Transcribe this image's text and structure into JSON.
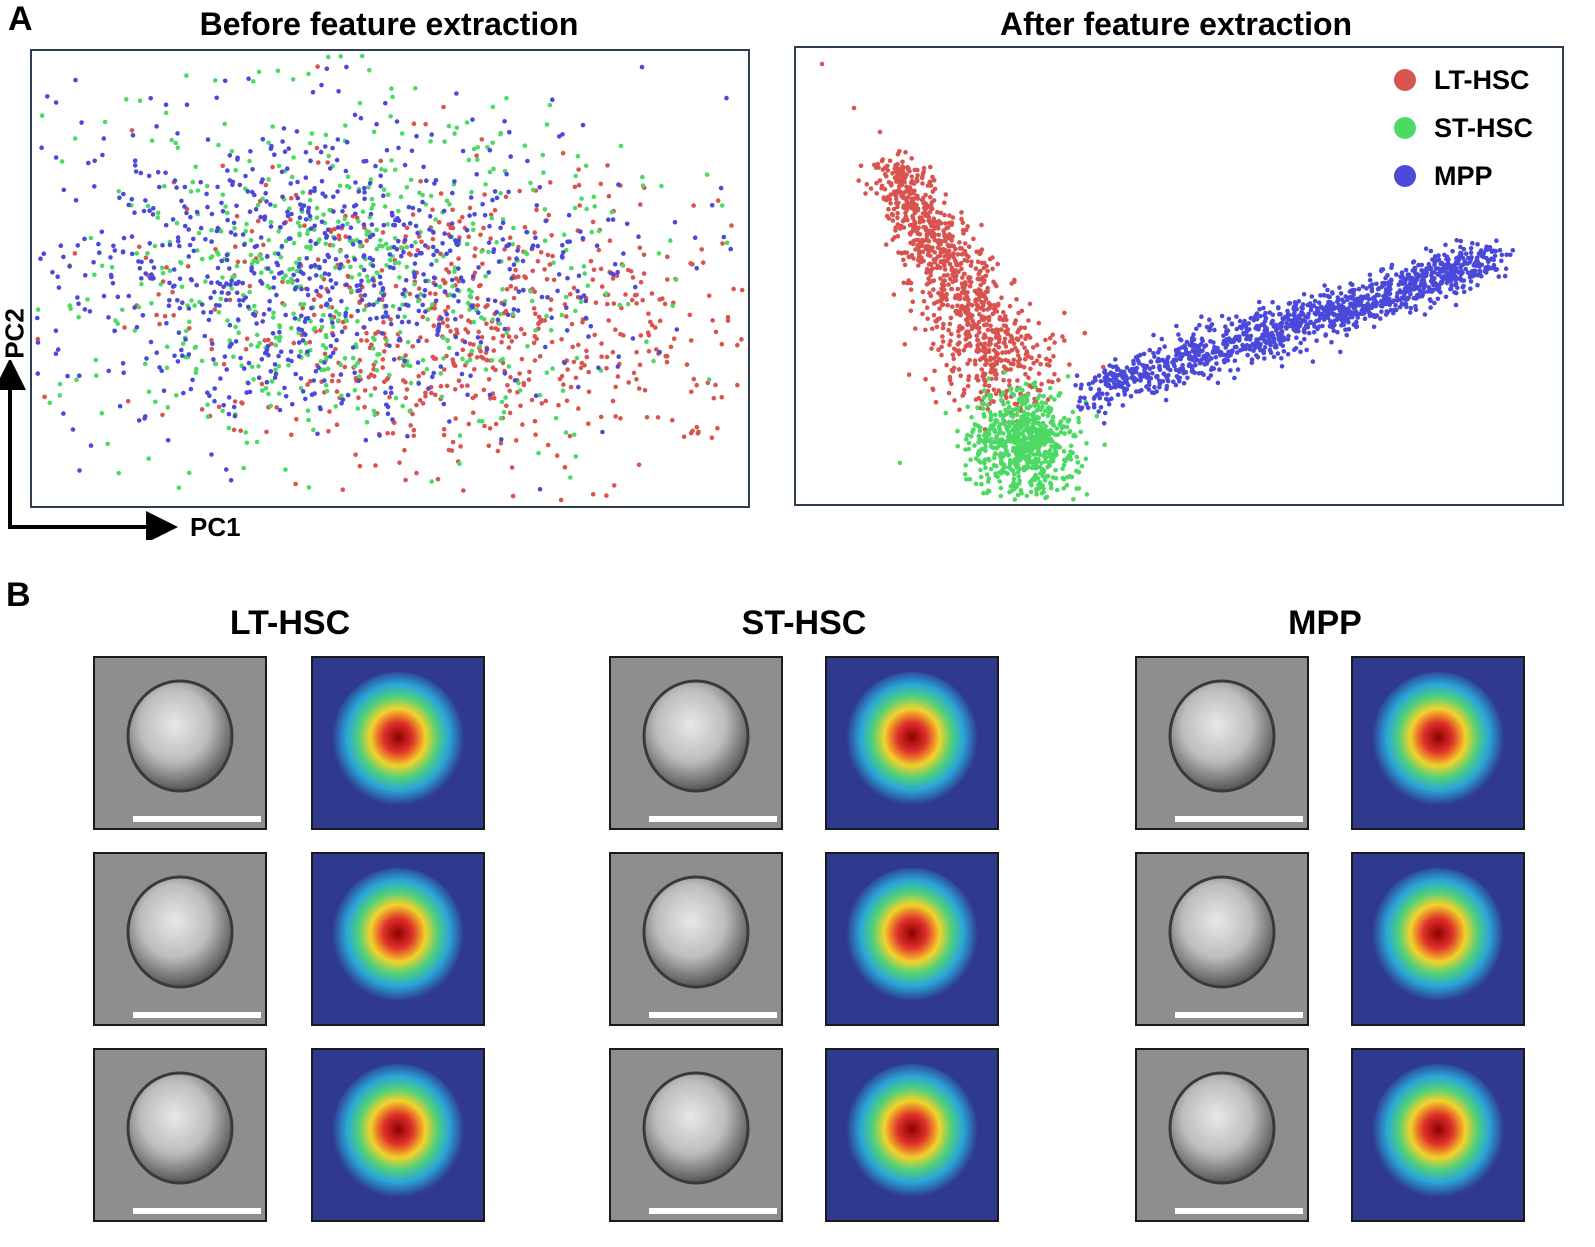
{
  "panelA": {
    "letter": "A",
    "left_title": "Before feature extraction",
    "right_title": "After feature extraction",
    "xaxis": "PC1",
    "yaxis": "PC2",
    "legend": [
      {
        "label": "LT-HSC",
        "color": "#d9534f"
      },
      {
        "label": "ST-HSC",
        "color": "#4cd964"
      },
      {
        "label": "MPP",
        "color": "#4a49d9"
      }
    ]
  },
  "panelB": {
    "letter": "B",
    "columns": [
      {
        "title": "LT-HSC"
      },
      {
        "title": "ST-HSC"
      },
      {
        "title": "MPP"
      }
    ]
  },
  "chart_data": [
    {
      "type": "scatter",
      "title": "Before feature extraction",
      "xlabel": "PC1",
      "ylabel": "PC2",
      "grid": false,
      "series": [
        {
          "name": "LT-HSC",
          "color": "#d9534f",
          "distribution": "broad cloud, shifted to right (high PC1)"
        },
        {
          "name": "ST-HSC",
          "color": "#4cd964",
          "distribution": "broad cloud, centered, extends upward"
        },
        {
          "name": "MPP",
          "color": "#4a49d9",
          "distribution": "broad cloud, centered-left"
        }
      ]
    },
    {
      "type": "scatter",
      "title": "After feature extraction",
      "grid": false,
      "legend_position": "top-right",
      "series": [
        {
          "name": "LT-HSC",
          "color": "#d9534f",
          "distribution": "elongated cluster along upper-left arm"
        },
        {
          "name": "ST-HSC",
          "color": "#4cd964",
          "distribution": "compact cluster at bottom vertex"
        },
        {
          "name": "MPP",
          "color": "#4a49d9",
          "distribution": "elongated cluster along right arm"
        }
      ]
    }
  ]
}
